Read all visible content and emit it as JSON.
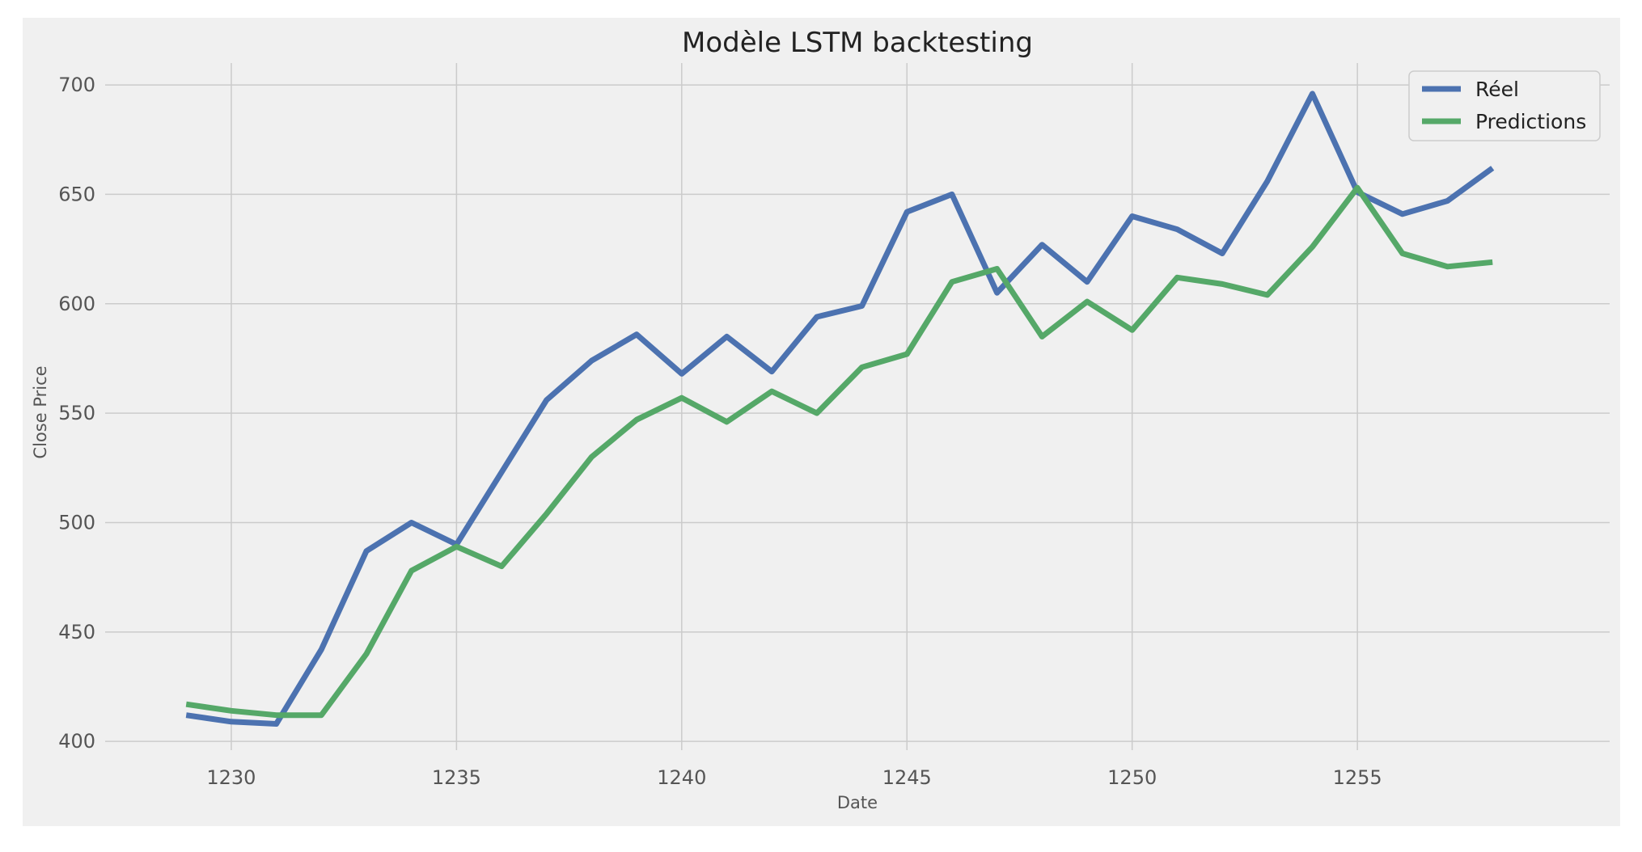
{
  "chart_data": {
    "type": "line",
    "title": "Modèle LSTM backtesting",
    "xlabel": "Date",
    "ylabel": "Close Price",
    "xlim": [
      1227.2,
      1260.6
    ],
    "ylim": [
      396,
      710
    ],
    "x_ticks": [
      1230,
      1235,
      1240,
      1245,
      1250,
      1255
    ],
    "y_ticks": [
      400,
      450,
      500,
      550,
      600,
      650,
      700
    ],
    "grid": true,
    "legend_position": "top-right",
    "x": [
      1229,
      1230,
      1231,
      1232,
      1233,
      1234,
      1235,
      1236,
      1237,
      1238,
      1239,
      1240,
      1241,
      1242,
      1243,
      1244,
      1245,
      1246,
      1247,
      1248,
      1249,
      1250,
      1251,
      1252,
      1253,
      1254,
      1255,
      1256,
      1257,
      1258
    ],
    "series": [
      {
        "name": "Réel",
        "color": "#4c72b0",
        "values": [
          412,
          409,
          408,
          442,
          487,
          500,
          490,
          523,
          556,
          574,
          586,
          568,
          585,
          569,
          594,
          599,
          642,
          650,
          605,
          627,
          610,
          640,
          634,
          623,
          656,
          696,
          651,
          641,
          647,
          662
        ]
      },
      {
        "name": "Predictions",
        "color": "#55a868",
        "values": [
          417,
          414,
          412,
          412,
          440,
          478,
          489,
          480,
          504,
          530,
          547,
          557,
          546,
          560,
          550,
          571,
          577,
          610,
          616,
          585,
          601,
          588,
          612,
          609,
          604,
          626,
          653,
          623,
          617,
          619
        ]
      }
    ]
  }
}
